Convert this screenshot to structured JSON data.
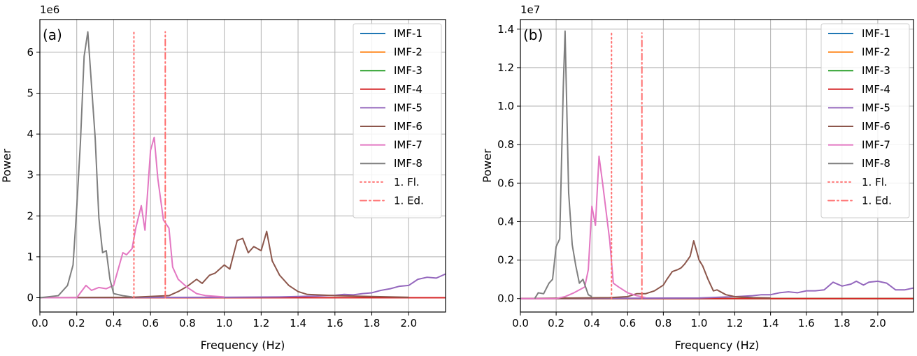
{
  "chart_data": [
    {
      "type": "line",
      "panel_label": "(a)",
      "xlabel": "Frequency (Hz)",
      "ylabel": "Power",
      "y_offset_text": "1e6",
      "xlim": [
        0,
        2.2
      ],
      "ylim": [
        -0.35,
        6.8
      ],
      "xticks": [
        0.0,
        0.2,
        0.4,
        0.6,
        0.8,
        1.0,
        1.2,
        1.4,
        1.6,
        1.8,
        2.0
      ],
      "xtick_labels": [
        "0.0",
        "0.2",
        "0.4",
        "0.6",
        "0.8",
        "1.0",
        "1.2",
        "1.4",
        "1.6",
        "1.8",
        "2.0"
      ],
      "yticks": [
        0,
        1,
        2,
        3,
        4,
        5,
        6
      ],
      "ytick_labels": [
        "0",
        "1",
        "2",
        "3",
        "4",
        "5",
        "6"
      ],
      "grid": true,
      "legend_position": "top-right",
      "series": [
        {
          "name": "IMF-1",
          "color": "#1f77b4",
          "style": "solid",
          "x": [
            0,
            2.2
          ],
          "y": [
            0,
            0
          ]
        },
        {
          "name": "IMF-2",
          "color": "#ff7f0e",
          "style": "solid",
          "x": [
            0,
            2.2
          ],
          "y": [
            0,
            0
          ]
        },
        {
          "name": "IMF-3",
          "color": "#2ca02c",
          "style": "solid",
          "x": [
            0,
            2.2
          ],
          "y": [
            0,
            0
          ]
        },
        {
          "name": "IMF-4",
          "color": "#d62728",
          "style": "solid",
          "x": [
            0,
            2.2
          ],
          "y": [
            0,
            0
          ]
        },
        {
          "name": "IMF-5",
          "color": "#9467bd",
          "style": "solid",
          "x": [
            0,
            1.0,
            1.3,
            1.5,
            1.6,
            1.65,
            1.7,
            1.75,
            1.8,
            1.85,
            1.9,
            1.95,
            2.0,
            2.05,
            2.1,
            2.15,
            2.2
          ],
          "y": [
            0,
            0.01,
            0.02,
            0.04,
            0.06,
            0.08,
            0.07,
            0.1,
            0.12,
            0.18,
            0.22,
            0.28,
            0.3,
            0.45,
            0.5,
            0.48,
            0.58
          ]
        },
        {
          "name": "IMF-6",
          "color": "#8c564b",
          "style": "solid",
          "x": [
            0,
            0.5,
            0.7,
            0.75,
            0.8,
            0.85,
            0.88,
            0.92,
            0.95,
            1.0,
            1.03,
            1.07,
            1.1,
            1.13,
            1.16,
            1.2,
            1.23,
            1.26,
            1.3,
            1.35,
            1.4,
            1.45,
            1.6,
            1.8,
            2.0
          ],
          "y": [
            0,
            0.01,
            0.05,
            0.15,
            0.28,
            0.45,
            0.35,
            0.55,
            0.6,
            0.8,
            0.7,
            1.4,
            1.45,
            1.1,
            1.25,
            1.15,
            1.62,
            0.9,
            0.55,
            0.3,
            0.15,
            0.08,
            0.05,
            0.03,
            0.01
          ]
        },
        {
          "name": "IMF-7",
          "color": "#e377c2",
          "style": "solid",
          "x": [
            0,
            0.2,
            0.25,
            0.28,
            0.32,
            0.36,
            0.4,
            0.45,
            0.47,
            0.5,
            0.52,
            0.55,
            0.57,
            0.6,
            0.62,
            0.64,
            0.67,
            0.7,
            0.72,
            0.75,
            0.8,
            0.85,
            0.9,
            1.0
          ],
          "y": [
            0,
            0.0,
            0.3,
            0.18,
            0.25,
            0.22,
            0.3,
            1.1,
            1.05,
            1.2,
            1.7,
            2.25,
            1.65,
            3.6,
            3.92,
            2.9,
            1.9,
            1.7,
            0.75,
            0.45,
            0.25,
            0.1,
            0.05,
            0.02
          ]
        },
        {
          "name": "IMF-8",
          "color": "#7f7f7f",
          "style": "solid",
          "x": [
            0,
            0.1,
            0.15,
            0.18,
            0.2,
            0.22,
            0.24,
            0.26,
            0.28,
            0.3,
            0.32,
            0.34,
            0.36,
            0.38,
            0.4,
            0.45,
            0.5
          ],
          "y": [
            0,
            0.05,
            0.3,
            0.8,
            2.2,
            3.8,
            5.9,
            6.5,
            5.2,
            3.9,
            1.95,
            1.1,
            1.15,
            0.45,
            0.1,
            0.05,
            0.02
          ]
        },
        {
          "name": "1. Fl.",
          "color": "#ff6f6f",
          "style": "dotted",
          "x": [
            0.51,
            0.51
          ],
          "y": [
            0,
            6.5
          ]
        },
        {
          "name": "1. Ed.",
          "color": "#ff6f6f",
          "style": "dashdot",
          "x": [
            0.68,
            0.68
          ],
          "y": [
            0,
            6.5
          ]
        }
      ]
    },
    {
      "type": "line",
      "panel_label": "(b)",
      "xlabel": "Frequency (Hz)",
      "ylabel": "Power",
      "y_offset_text": "1e7",
      "xlim": [
        0,
        2.2
      ],
      "ylim": [
        -0.07,
        1.45
      ],
      "xticks": [
        0.0,
        0.2,
        0.4,
        0.6,
        0.8,
        1.0,
        1.2,
        1.4,
        1.6,
        1.8,
        2.0
      ],
      "xtick_labels": [
        "0.0",
        "0.2",
        "0.4",
        "0.6",
        "0.8",
        "1.0",
        "1.2",
        "1.4",
        "1.6",
        "1.8",
        "2.0"
      ],
      "yticks": [
        0.0,
        0.2,
        0.4,
        0.6,
        0.8,
        1.0,
        1.2,
        1.4
      ],
      "ytick_labels": [
        "0.0",
        "0.2",
        "0.4",
        "0.6",
        "0.8",
        "1.0",
        "1.2",
        "1.4"
      ],
      "grid": true,
      "legend_position": "top-right",
      "series": [
        {
          "name": "IMF-1",
          "color": "#1f77b4",
          "style": "solid",
          "x": [
            0,
            2.2
          ],
          "y": [
            0,
            0
          ]
        },
        {
          "name": "IMF-2",
          "color": "#ff7f0e",
          "style": "solid",
          "x": [
            0,
            2.2
          ],
          "y": [
            0,
            0
          ]
        },
        {
          "name": "IMF-3",
          "color": "#2ca02c",
          "style": "solid",
          "x": [
            0,
            2.2
          ],
          "y": [
            0,
            0
          ]
        },
        {
          "name": "IMF-4",
          "color": "#d62728",
          "style": "solid",
          "x": [
            0,
            2.2
          ],
          "y": [
            0,
            0
          ]
        },
        {
          "name": "IMF-5",
          "color": "#9467bd",
          "style": "solid",
          "x": [
            0,
            1.0,
            1.2,
            1.3,
            1.35,
            1.4,
            1.45,
            1.5,
            1.55,
            1.6,
            1.65,
            1.7,
            1.75,
            1.8,
            1.85,
            1.88,
            1.92,
            1.95,
            2.0,
            2.05,
            2.1,
            2.15,
            2.2
          ],
          "y": [
            0,
            0.003,
            0.01,
            0.015,
            0.02,
            0.02,
            0.03,
            0.035,
            0.03,
            0.04,
            0.04,
            0.045,
            0.085,
            0.065,
            0.075,
            0.09,
            0.07,
            0.085,
            0.09,
            0.08,
            0.045,
            0.045,
            0.055
          ]
        },
        {
          "name": "IMF-6",
          "color": "#8c564b",
          "style": "solid",
          "x": [
            0,
            0.5,
            0.6,
            0.65,
            0.7,
            0.75,
            0.8,
            0.82,
            0.85,
            0.88,
            0.9,
            0.92,
            0.95,
            0.97,
            1.0,
            1.02,
            1.05,
            1.08,
            1.1,
            1.15,
            1.2,
            1.3,
            1.4
          ],
          "y": [
            0,
            0.005,
            0.01,
            0.025,
            0.025,
            0.04,
            0.07,
            0.1,
            0.14,
            0.15,
            0.16,
            0.18,
            0.22,
            0.3,
            0.2,
            0.17,
            0.1,
            0.04,
            0.045,
            0.02,
            0.01,
            0.005,
            0.003
          ]
        },
        {
          "name": "IMF-7",
          "color": "#e377c2",
          "style": "solid",
          "x": [
            0,
            0.2,
            0.25,
            0.3,
            0.33,
            0.36,
            0.38,
            0.4,
            0.42,
            0.44,
            0.46,
            0.48,
            0.5,
            0.52,
            0.55,
            0.6,
            0.65,
            0.7
          ],
          "y": [
            0,
            0.0,
            0.01,
            0.03,
            0.045,
            0.06,
            0.15,
            0.48,
            0.38,
            0.74,
            0.6,
            0.45,
            0.3,
            0.08,
            0.06,
            0.03,
            0.015,
            0.005
          ]
        },
        {
          "name": "IMF-8",
          "color": "#7f7f7f",
          "style": "solid",
          "x": [
            0.08,
            0.1,
            0.13,
            0.16,
            0.18,
            0.2,
            0.22,
            0.24,
            0.25,
            0.27,
            0.29,
            0.31,
            0.33,
            0.35,
            0.38,
            0.4
          ],
          "y": [
            0,
            0.03,
            0.025,
            0.08,
            0.1,
            0.27,
            0.31,
            1.1,
            1.39,
            0.55,
            0.28,
            0.17,
            0.08,
            0.1,
            0.02,
            0.01
          ]
        },
        {
          "name": "1. Fl.",
          "color": "#ff6f6f",
          "style": "dotted",
          "x": [
            0.51,
            0.51
          ],
          "y": [
            0,
            1.38
          ]
        },
        {
          "name": "1. Ed.",
          "color": "#ff6f6f",
          "style": "dashdot",
          "x": [
            0.68,
            0.68
          ],
          "y": [
            0,
            1.38
          ]
        }
      ]
    }
  ]
}
